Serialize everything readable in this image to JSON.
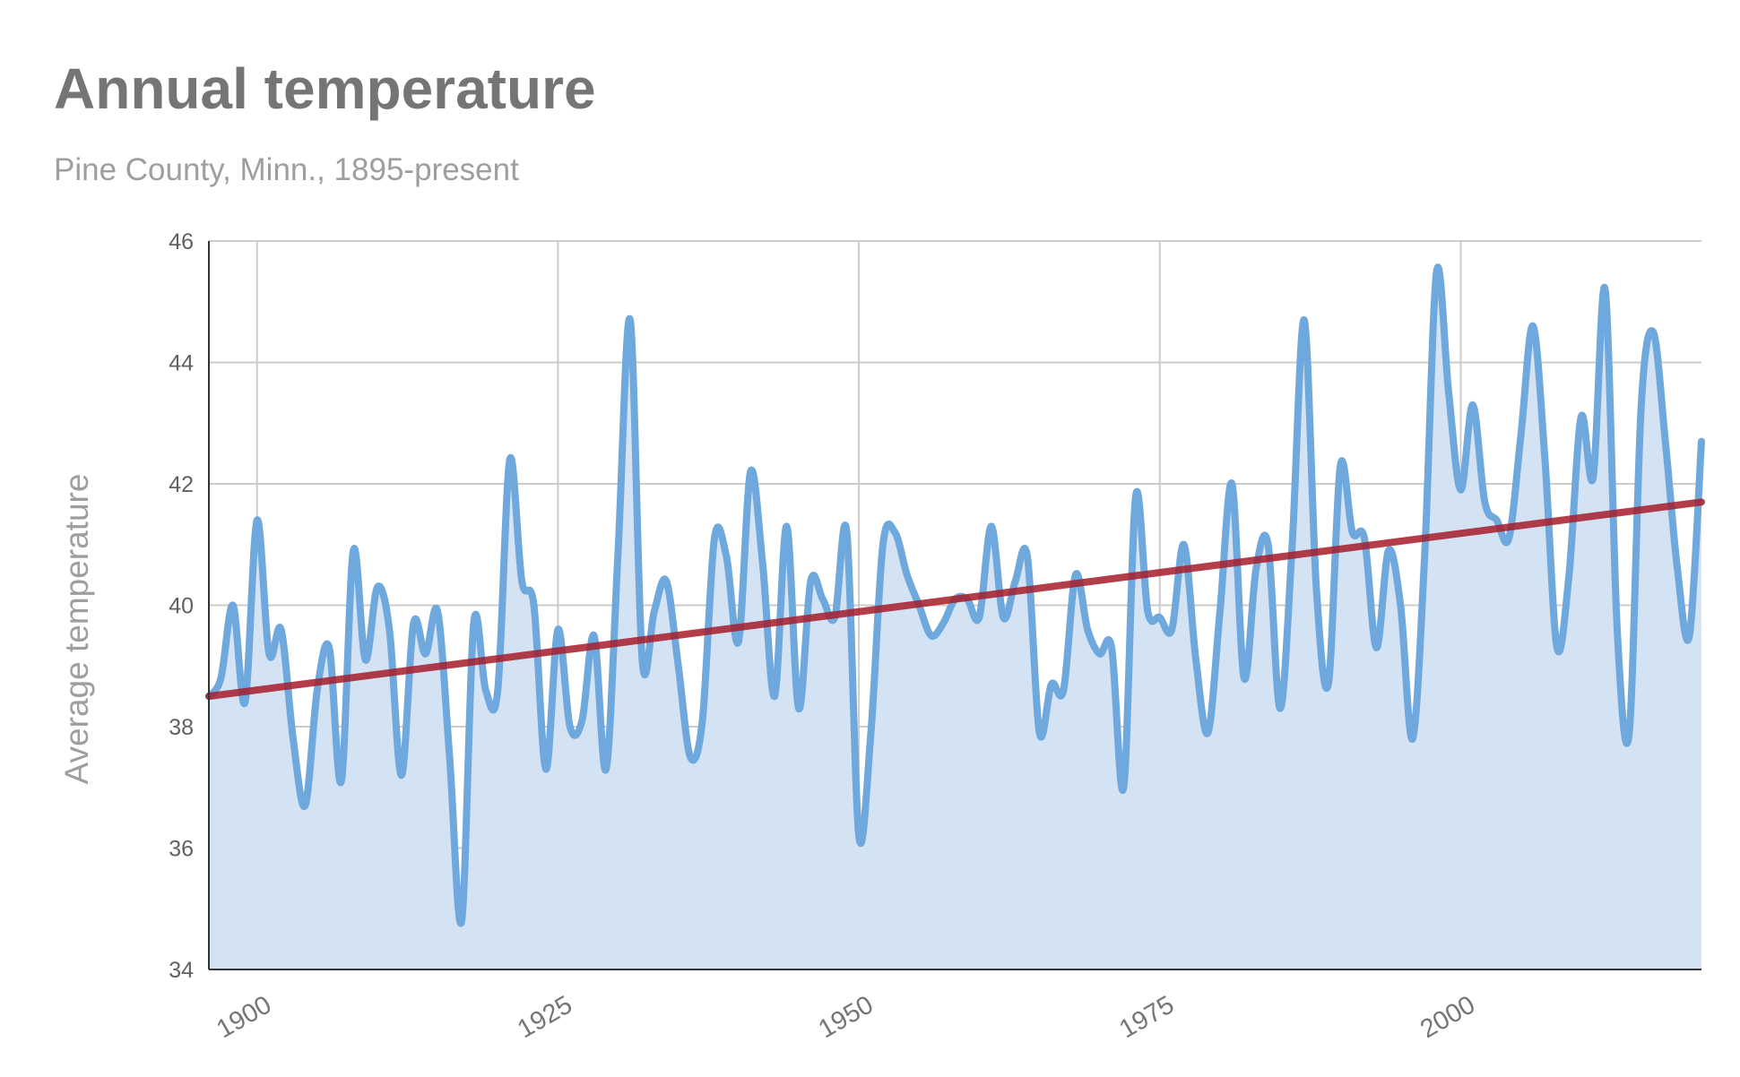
{
  "chart_data": {
    "type": "area",
    "title": "Annual temperature",
    "subtitle": "Pine County, Minn., 1895-present",
    "xlabel": "",
    "ylabel": "Average temperature",
    "xlim": [
      1896,
      2020
    ],
    "ylim": [
      34,
      46
    ],
    "yticks": [
      34,
      36,
      38,
      40,
      42,
      44,
      46
    ],
    "xticks": [
      1900,
      1925,
      1950,
      1975,
      2000
    ],
    "grid": true,
    "colors": {
      "line": "#6fa8dc",
      "fill": "#d4e3f4",
      "trend": "#a61c2a",
      "grid": "#cccccc"
    },
    "series": [
      {
        "x": [
          1896,
          1897,
          1898,
          1899,
          1900,
          1901,
          1902,
          1903,
          1904,
          1905,
          1906,
          1907,
          1908,
          1909,
          1910,
          1911,
          1912,
          1913,
          1914,
          1915,
          1916,
          1917,
          1918,
          1919,
          1920,
          1921,
          1922,
          1923,
          1924,
          1925,
          1926,
          1927,
          1928,
          1929,
          1930,
          1931,
          1932,
          1933,
          1934,
          1935,
          1936,
          1937,
          1938,
          1939,
          1940,
          1941,
          1942,
          1943,
          1944,
          1945,
          1946,
          1947,
          1948,
          1949,
          1950,
          1951,
          1952,
          1953,
          1954,
          1955,
          1956,
          1957,
          1958,
          1959,
          1960,
          1961,
          1962,
          1963,
          1964,
          1965,
          1966,
          1967,
          1968,
          1969,
          1970,
          1971,
          1972,
          1973,
          1974,
          1975,
          1976,
          1977,
          1978,
          1979,
          1980,
          1981,
          1982,
          1983,
          1984,
          1985,
          1986,
          1987,
          1988,
          1989,
          1990,
          1991,
          1992,
          1993,
          1994,
          1995,
          1996,
          1997,
          1998,
          1999,
          2000,
          2001,
          2002,
          2003,
          2004,
          2005,
          2006,
          2007,
          2008,
          2009,
          2010,
          2011,
          2012,
          2013,
          2014,
          2015,
          2016,
          2017,
          2018,
          2019,
          2020
        ],
        "values": [
          38.5,
          38.8,
          40.0,
          38.4,
          41.4,
          39.2,
          39.6,
          37.8,
          36.7,
          38.6,
          39.3,
          37.1,
          40.9,
          39.1,
          40.3,
          39.6,
          37.2,
          39.7,
          39.2,
          39.9,
          37.5,
          34.8,
          39.7,
          38.6,
          38.6,
          42.4,
          40.4,
          40.0,
          37.3,
          39.6,
          38.0,
          38.1,
          39.5,
          37.3,
          40.9,
          44.7,
          39.1,
          39.9,
          40.4,
          39.0,
          37.5,
          38.1,
          41.1,
          40.8,
          39.4,
          42.2,
          40.7,
          38.5,
          41.3,
          38.3,
          40.4,
          40.1,
          39.8,
          41.2,
          36.2,
          37.9,
          41.0,
          41.2,
          40.5,
          40.0,
          39.5,
          39.7,
          40.1,
          40.1,
          39.8,
          41.3,
          39.8,
          40.4,
          40.8,
          37.9,
          38.7,
          38.6,
          40.5,
          39.6,
          39.2,
          39.3,
          37.0,
          41.8,
          39.9,
          39.8,
          39.6,
          41.0,
          39.1,
          37.9,
          39.9,
          42.0,
          38.8,
          40.6,
          41.0,
          38.3,
          41.0,
          44.7,
          40.3,
          38.7,
          42.3,
          41.2,
          41.1,
          39.3,
          40.9,
          40.0,
          37.8,
          40.8,
          45.5,
          43.5,
          41.9,
          43.3,
          41.7,
          41.4,
          41.1,
          42.8,
          44.6,
          42.4,
          39.3,
          40.5,
          43.1,
          42.1,
          45.2,
          39.6,
          37.9,
          43.3,
          44.5,
          42.7,
          40.6,
          39.5,
          42.7
        ]
      },
      {
        "x": [
          1896,
          2020
        ],
        "values": [
          38.5,
          41.7
        ]
      }
    ]
  }
}
